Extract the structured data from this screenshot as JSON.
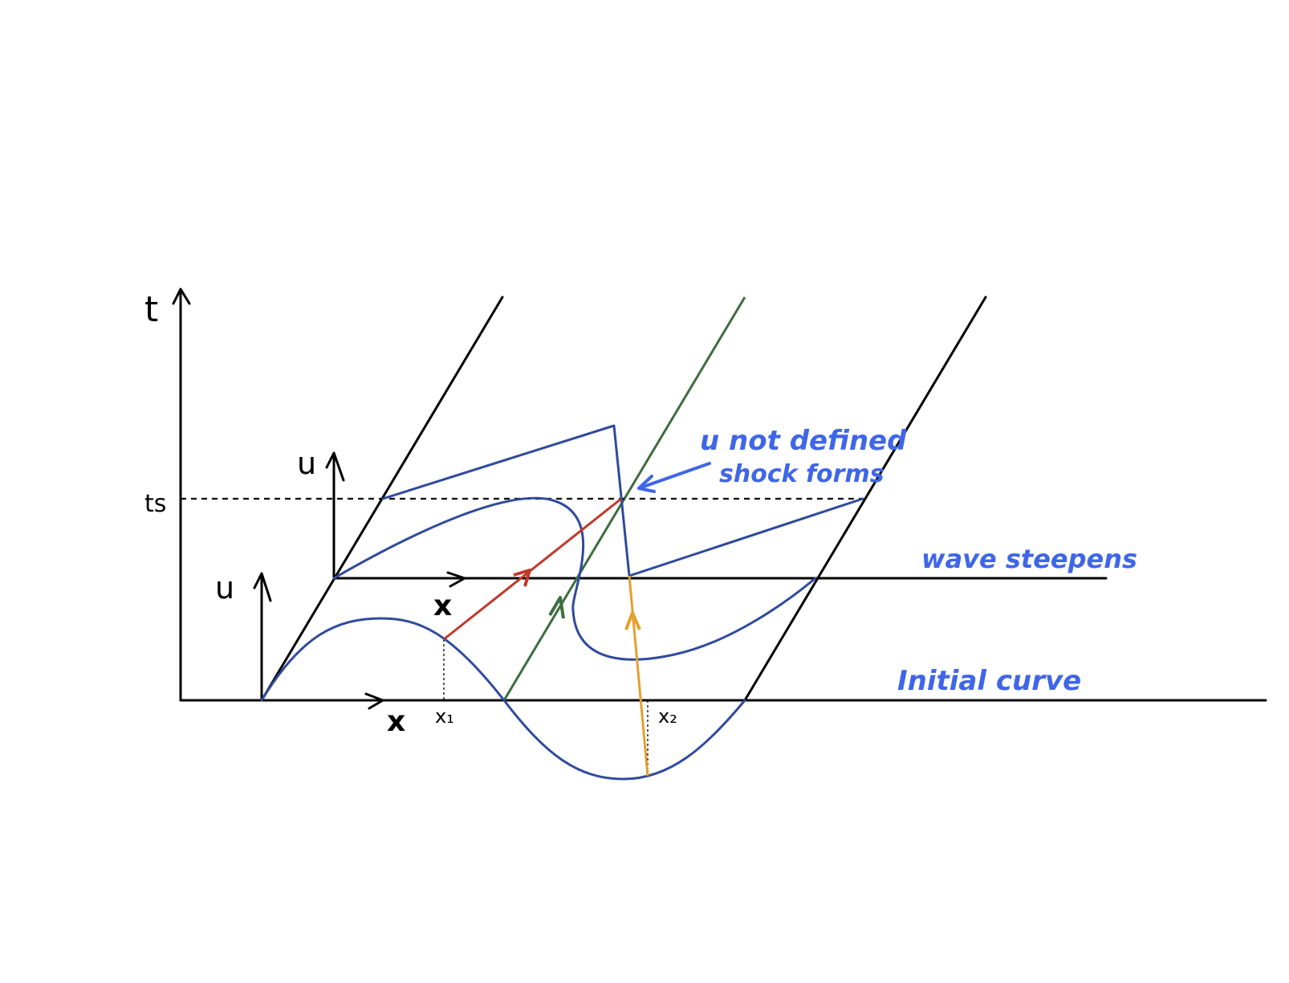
{
  "labels": {
    "t_axis": "t",
    "ts": "ts",
    "u_lower": "u",
    "u_upper": "u",
    "x_lower": "x",
    "x_upper": "x",
    "x1": "x₁",
    "x2": "x₂"
  },
  "annotations": {
    "shock_line1": "u not defined",
    "shock_line2": "shock forms",
    "steepens": "wave steepens",
    "initial": "Initial curve"
  },
  "colors": {
    "axes": "#000000",
    "curve": "#2f4a9e",
    "annotation": "#3f66e8",
    "char_red": "#c0392b",
    "char_green": "#3d6e3d",
    "char_orange": "#e3a02b"
  }
}
